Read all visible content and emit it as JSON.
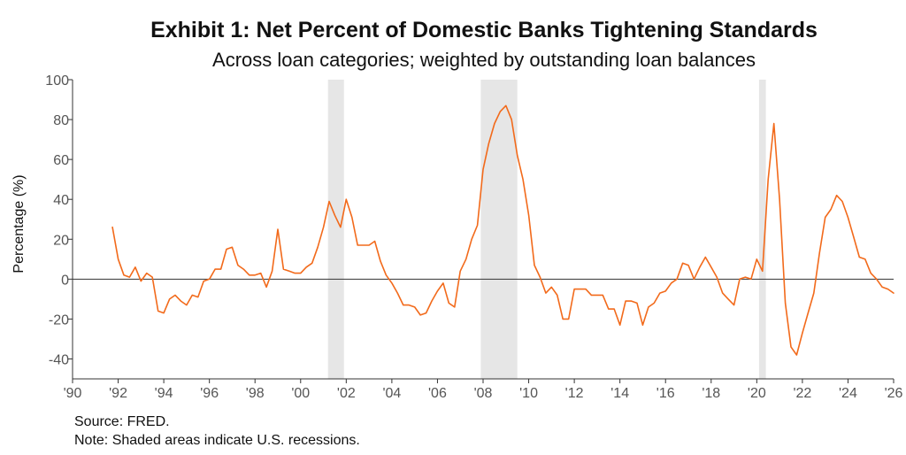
{
  "title": "Exhibit 1: Net Percent of Domestic Banks Tightening Standards",
  "subtitle": "Across loan categories; weighted by outstanding loan balances",
  "source": "Source: FRED.",
  "note": "Note: Shaded areas indicate U.S. recessions.",
  "colors": {
    "line": "#f26a1b",
    "recession": "#e6e6e6",
    "axis": "#333333",
    "zero_line": "#333333"
  },
  "chart_data": {
    "type": "line",
    "title": "Exhibit 1: Net Percent of Domestic Banks Tightening Standards",
    "subtitle": "Across loan categories; weighted by outstanding loan balances",
    "xlabel": "",
    "ylabel": "Percentage (%)",
    "xlim": [
      1990,
      2026
    ],
    "ylim": [
      -50,
      100
    ],
    "x_ticks": [
      1990,
      1992,
      1994,
      1996,
      1998,
      2000,
      2002,
      2004,
      2006,
      2008,
      2010,
      2012,
      2014,
      2016,
      2018,
      2020,
      2022,
      2024,
      2026
    ],
    "x_tick_labels": [
      "'90",
      "'92",
      "'94",
      "'96",
      "'98",
      "'00",
      "'02",
      "'04",
      "'06",
      "'08",
      "'10",
      "'12",
      "'14",
      "'16",
      "'18",
      "'20",
      "'22",
      "'24",
      "'26"
    ],
    "y_ticks": [
      -40,
      -20,
      0,
      20,
      40,
      60,
      80,
      100
    ],
    "y_tick_labels": [
      "-40",
      "-20",
      "0",
      "20",
      "40",
      "60",
      "80",
      "100"
    ],
    "grid": false,
    "legend": "none",
    "recessions": [
      [
        2001.2,
        2001.9
      ],
      [
        2007.9,
        2009.5
      ],
      [
        2020.1,
        2020.4
      ]
    ],
    "series": [
      {
        "x": [
          1991.75,
          1992.0,
          1992.25,
          1992.5,
          1992.75,
          1993.0,
          1993.25,
          1993.5,
          1993.75,
          1994.0,
          1994.25,
          1994.5,
          1994.75,
          1995.0,
          1995.25,
          1995.5,
          1995.75,
          1996.0,
          1996.25,
          1996.5,
          1996.75,
          1997.0,
          1997.25,
          1997.5,
          1997.75,
          1998.0,
          1998.25,
          1998.5,
          1998.75,
          1999.0,
          1999.25,
          1999.5,
          1999.75,
          2000.0,
          2000.25,
          2000.5,
          2000.75,
          2001.0,
          2001.25,
          2001.5,
          2001.75,
          2002.0,
          2002.25,
          2002.5,
          2002.75,
          2003.0,
          2003.25,
          2003.5,
          2003.75,
          2004.0,
          2004.25,
          2004.5,
          2004.75,
          2005.0,
          2005.25,
          2005.5,
          2005.75,
          2006.0,
          2006.25,
          2006.5,
          2006.75,
          2007.0,
          2007.25,
          2007.5,
          2007.75,
          2008.0,
          2008.25,
          2008.5,
          2008.75,
          2009.0,
          2009.25,
          2009.5,
          2009.75,
          2010.0,
          2010.25,
          2010.5,
          2010.75,
          2011.0,
          2011.25,
          2011.5,
          2011.75,
          2012.0,
          2012.25,
          2012.5,
          2012.75,
          2013.0,
          2013.25,
          2013.5,
          2013.75,
          2014.0,
          2014.25,
          2014.5,
          2014.75,
          2015.0,
          2015.25,
          2015.5,
          2015.75,
          2016.0,
          2016.25,
          2016.5,
          2016.75,
          2017.0,
          2017.25,
          2017.5,
          2017.75,
          2018.0,
          2018.25,
          2018.5,
          2018.75,
          2019.0,
          2019.25,
          2019.5,
          2019.75,
          2020.0,
          2020.25,
          2020.5,
          2020.75,
          2021.0,
          2021.25,
          2021.5,
          2021.75,
          2022.0,
          2022.25,
          2022.5,
          2022.75,
          2023.0,
          2023.25,
          2023.5,
          2023.75,
          2024.0,
          2024.25,
          2024.5,
          2024.75,
          2025.0,
          2025.25,
          2025.5,
          2025.75,
          2026.0
        ],
        "y": [
          26,
          10,
          2,
          1,
          6,
          -1,
          3,
          1,
          -16,
          -17,
          -10,
          -8,
          -11,
          -13,
          -8,
          -9,
          -1,
          0,
          5,
          5,
          15,
          16,
          7,
          5,
          2,
          2,
          3,
          -4,
          4,
          25,
          5,
          4,
          3,
          3,
          6,
          8,
          16,
          26,
          39,
          32,
          26,
          40,
          31,
          17,
          17,
          17,
          19,
          9,
          2,
          -2,
          -7,
          -13,
          -13,
          -14,
          -18,
          -17,
          -11,
          -6,
          -2,
          -12,
          -14,
          4,
          10,
          20,
          27,
          55,
          68,
          78,
          84,
          87,
          80,
          62,
          50,
          32,
          7,
          1,
          -7,
          -4,
          -8,
          -20,
          -20,
          -5,
          -5,
          -5,
          -8,
          -8,
          -8,
          -15,
          -15,
          -23,
          -11,
          -11,
          -12,
          -23,
          -14,
          -12,
          -7,
          -6,
          -2,
          0,
          8,
          7,
          0,
          6,
          11,
          6,
          1,
          -7,
          -10,
          -13,
          0,
          1,
          0,
          10,
          4,
          50,
          78,
          40,
          -12,
          -34,
          -38,
          -27,
          -17,
          -7,
          13,
          31,
          35,
          42,
          39,
          31,
          21,
          11,
          10,
          3,
          0,
          -4,
          -5,
          -7
        ]
      }
    ]
  }
}
